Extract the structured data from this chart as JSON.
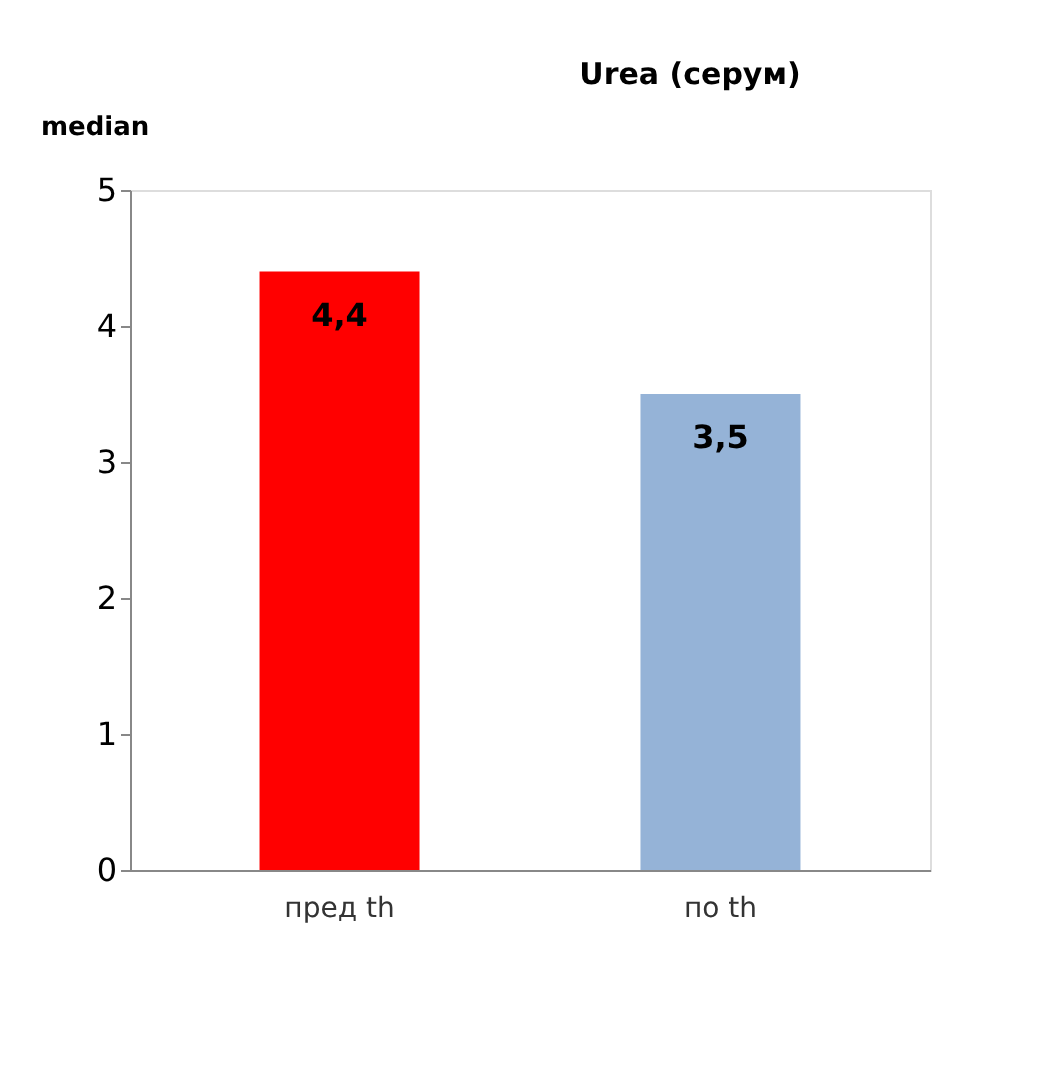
{
  "chart_data": {
    "type": "bar",
    "title": "Urea (серум)",
    "ylabel": "median",
    "categories": [
      "пред th",
      "по th"
    ],
    "values": [
      4.4,
      3.5
    ],
    "colors": [
      "#ff0000",
      "#95b3d7"
    ],
    "value_labels": [
      "4,4",
      "3,5"
    ],
    "ylim": [
      0,
      5
    ],
    "yticks": [
      0,
      1,
      2,
      3,
      4,
      5
    ],
    "grid": false,
    "legend": false
  }
}
